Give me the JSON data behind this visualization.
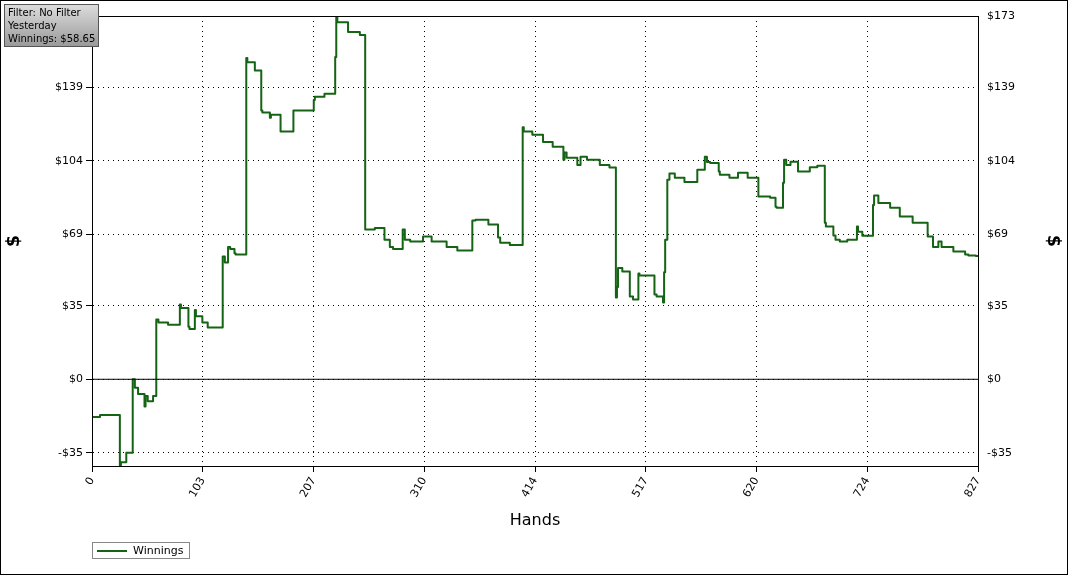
{
  "chart_data": {
    "type": "step",
    "xlabel": "Hands",
    "ylabel": "$",
    "y2label": "$",
    "annotations": [
      "Filter: No Filter",
      "Yesterday",
      "Winnings: $58.65"
    ],
    "x": [
      0,
      7.5,
      12,
      26,
      27,
      32,
      38,
      40,
      43,
      49,
      50,
      52,
      57,
      60,
      62,
      71,
      82,
      83,
      90,
      91,
      96,
      97,
      103,
      108,
      122,
      124,
      127,
      129,
      133,
      134,
      144,
      145,
      152,
      158,
      159,
      166,
      167,
      176,
      178,
      188,
      190,
      207,
      208,
      217,
      227,
      228,
      229,
      239,
      250,
      255,
      256,
      264,
      273,
      278,
      281,
      290,
      292,
      297,
      309,
      317,
      331,
      341,
      355,
      358,
      370,
      379,
      381,
      390,
      402,
      403,
      411,
      421,
      430,
      440,
      441,
      443,
      453,
      456,
      462,
      474,
      483,
      489,
      490,
      491,
      495,
      502,
      505,
      510,
      511,
      525,
      527,
      533,
      534,
      535,
      537,
      539,
      544,
      553,
      565,
      566,
      572,
      574,
      577,
      585,
      586,
      595,
      603,
      605,
      612,
      622,
      626,
      633,
      638,
      639,
      645,
      646,
      648,
      652,
      659,
      670,
      677,
      684,
      685,
      692,
      694,
      698,
      705,
      714,
      715,
      719,
      729,
      730,
      734,
      745,
      754,
      766,
      780,
      785,
      790,
      793,
      804,
      815,
      818,
      825,
      827
    ],
    "series": [
      {
        "name": "Winnings",
        "color": "#156315",
        "values": [
          -13,
          -18,
          -17,
          -17,
          -41,
          -39.5,
          -35,
          0,
          -4,
          -7,
          -13,
          -8,
          -10.5,
          -8,
          28.5,
          27,
          26,
          35.6,
          34,
          25,
          24,
          33,
          30,
          27,
          24.7,
          58.5,
          55.6,
          63,
          62,
          60,
          59.4,
          153,
          151,
          147,
          128,
          127,
          124.5,
          126,
          118,
          118,
          128,
          128,
          133,
          134.5,
          136,
          153.5,
          172.5,
          170,
          165.4,
          164,
          71.3,
          71.3,
          72,
          66.5,
          63,
          62,
          71.3,
          66.5,
          65.6,
          68,
          65.6,
          63,
          61.3,
          75.6,
          76,
          73.7,
          67.5,
          65,
          64,
          120,
          118,
          116.4,
          113,
          110.7,
          104.6,
          108,
          105.5,
          102,
          106,
          104.6,
          102,
          100.8,
          39,
          44,
          53,
          51.3,
          39.4,
          38,
          50.4,
          49.4,
          40.4,
          39.4,
          36.6,
          51,
          66.5,
          95,
          98,
          96,
          94,
          99.8,
          99.8,
          106,
          103.5,
          103,
          99,
          97.4,
          96,
          98.4,
          98.4,
          96,
          87,
          87,
          86.5,
          82.2,
          81.7,
          93.6,
          104.6,
          102,
          103.6,
          99,
          101,
          101.7,
          74.6,
          72.7,
          68.5,
          66.5,
          65.6,
          66.5,
          72.7,
          70.3,
          68.4,
          83,
          87.5,
          84,
          81.7,
          77.5,
          74.6,
          68,
          63,
          65.6,
          63,
          60.8,
          59.4,
          58.9,
          58.7
        ]
      }
    ],
    "xlim": [
      0,
      827
    ],
    "xticks": [
      0,
      {
        "value": 103.375,
        "label": "103"
      },
      {
        "value": 206.75,
        "label": "207"
      },
      {
        "value": 310.125,
        "label": "310"
      },
      {
        "value": 413.5,
        "label": "414"
      },
      {
        "value": 516.875,
        "label": "517"
      },
      {
        "value": 620.25,
        "label": "620"
      },
      {
        "value": 723.625,
        "label": "724"
      },
      827
    ],
    "ylim": [
      -41.3,
      173
    ],
    "yticks": [
      {
        "value": -35,
        "label": "-$35"
      },
      {
        "value": 0,
        "label": "$0"
      },
      {
        "value": 35,
        "label": "$35"
      },
      {
        "value": 69,
        "label": "$69"
      },
      {
        "value": 104,
        "label": "$104"
      },
      {
        "value": 139,
        "label": "$139"
      }
    ],
    "y2lim": [
      -41.3,
      173
    ],
    "y2ticks": [
      {
        "value": -35,
        "label": "-$35"
      },
      {
        "value": 0,
        "label": "$0"
      },
      {
        "value": 35,
        "label": "$35"
      },
      {
        "value": 69,
        "label": "$69"
      },
      {
        "value": 104,
        "label": "$104"
      },
      {
        "value": 139,
        "label": "$139"
      },
      {
        "value": 173,
        "label": "$173"
      }
    ],
    "grid": true,
    "legend": "bottom left",
    "ref_lines": [
      {
        "axis": "y",
        "value": 0,
        "color": "#000000"
      }
    ]
  }
}
